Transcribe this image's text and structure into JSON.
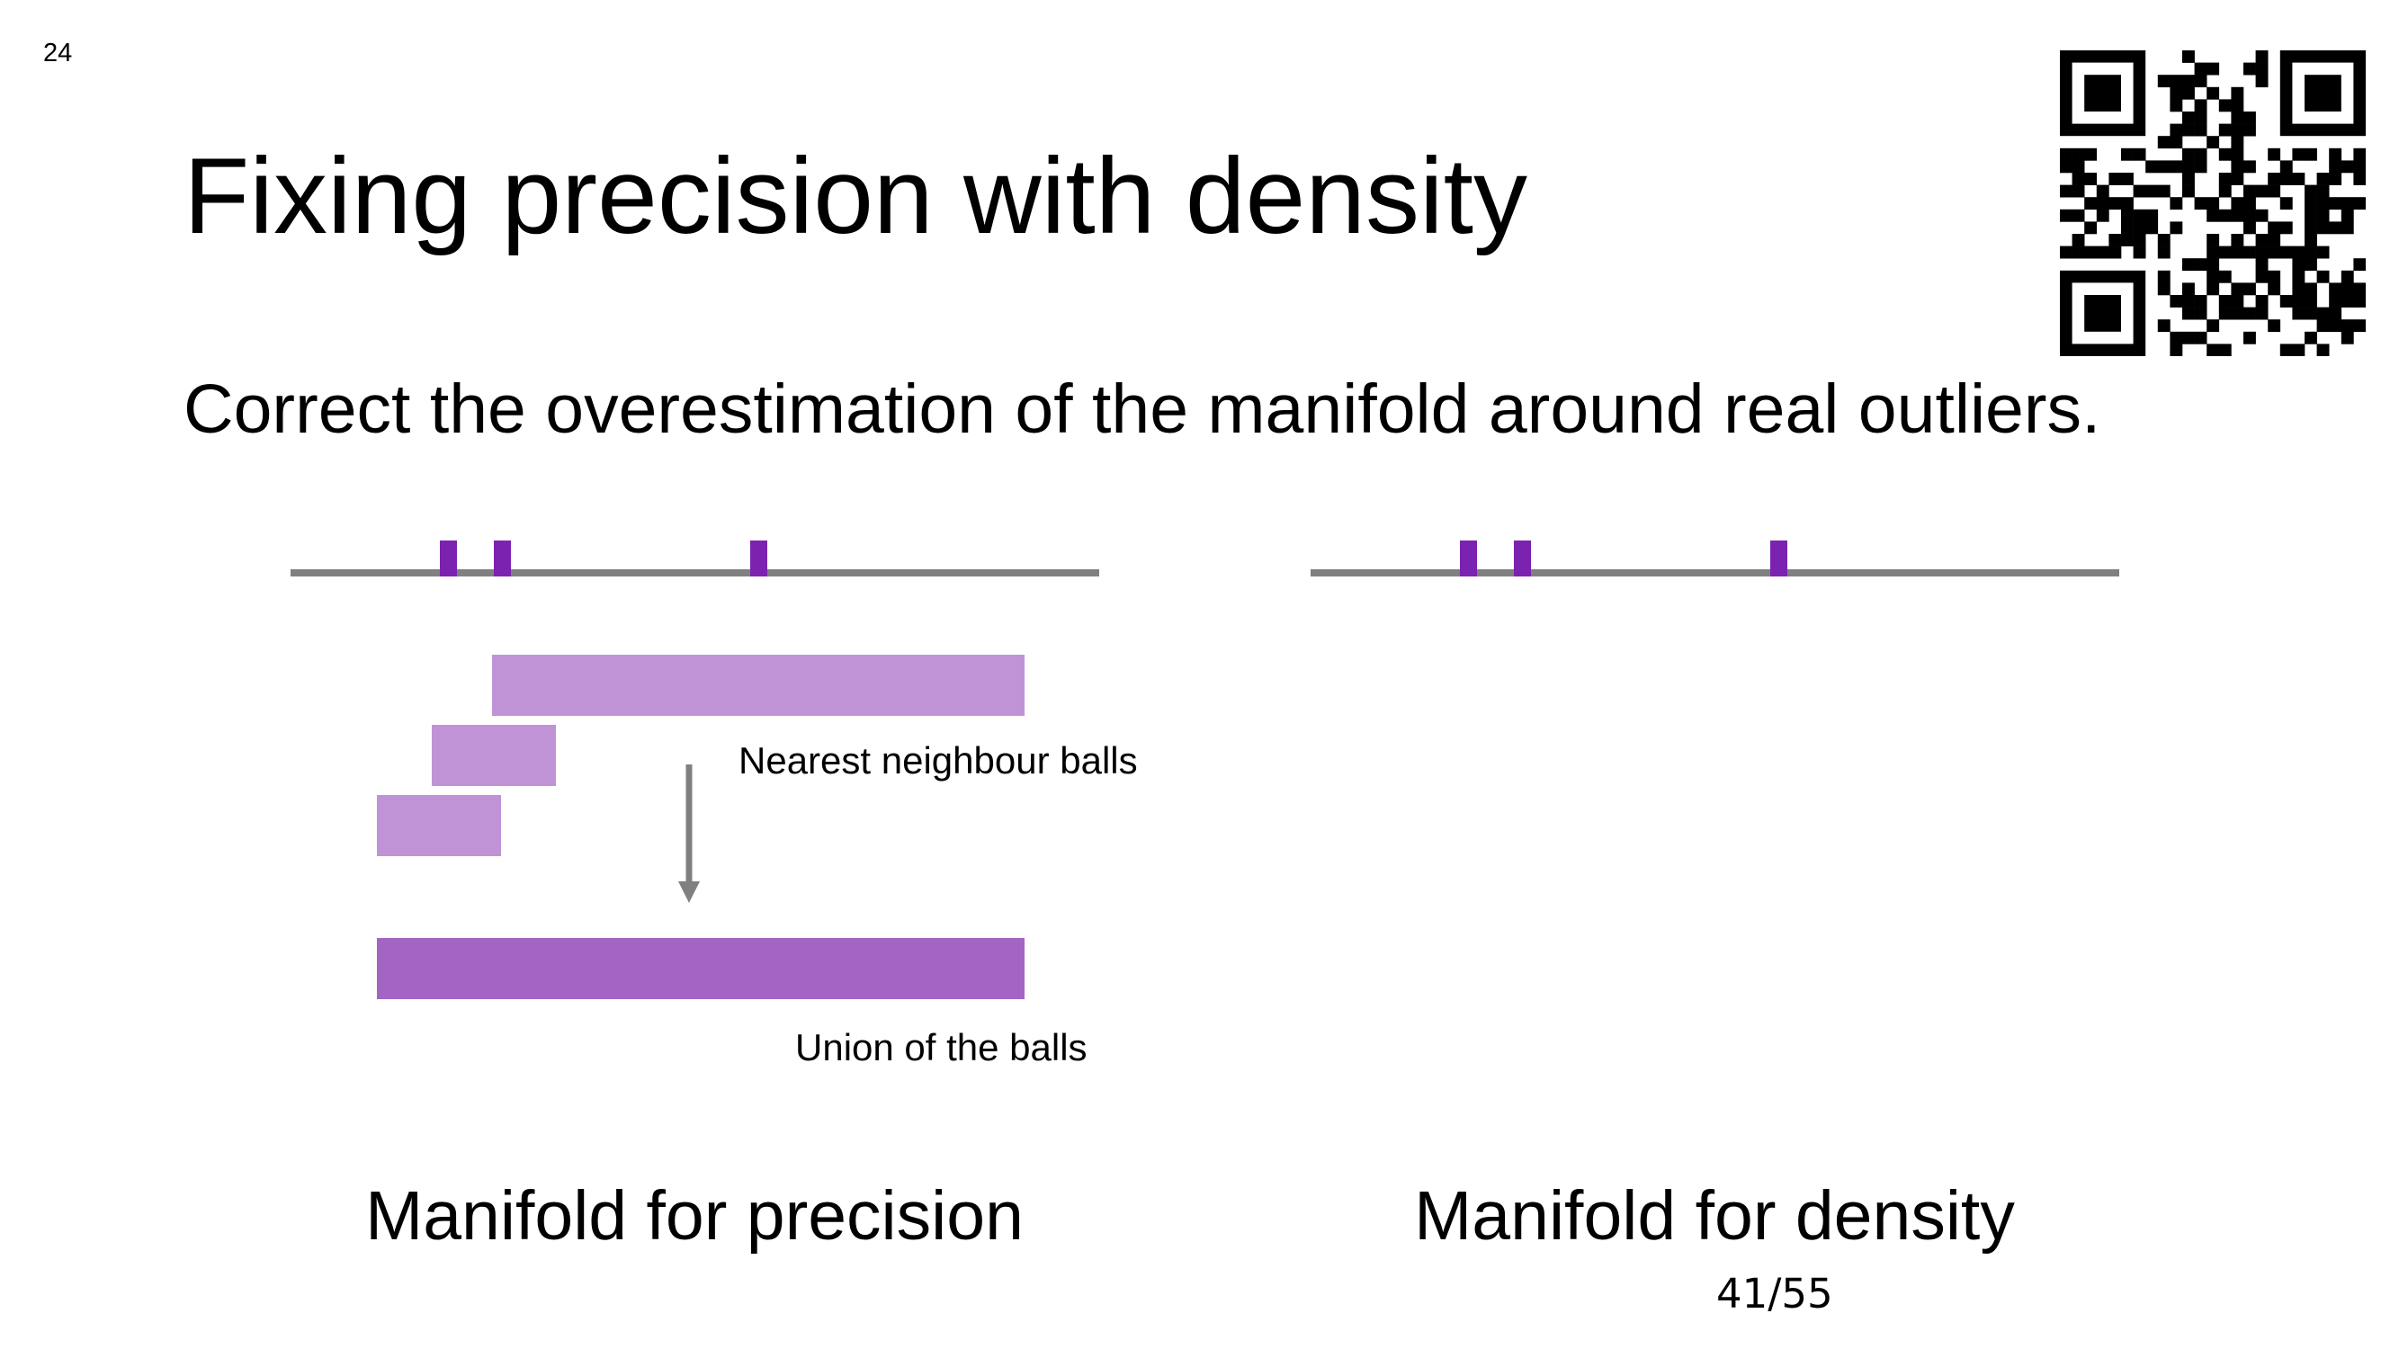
{
  "slide": {
    "number": "24",
    "title": "Fixing precision with density",
    "subtitle": "Correct the overestimation of the manifold around real outliers.",
    "page_counter": "41/55"
  },
  "qr_code": {
    "icon": "qr-code-icon",
    "color": "#000000"
  },
  "left_panel": {
    "caption": "Manifold for precision",
    "label_balls": "Nearest neighbour balls",
    "label_union": "Union of the balls"
  },
  "right_panel": {
    "caption": "Manifold for density"
  },
  "colors": {
    "axis": "#808080",
    "point": "#7b22b0",
    "ball": "#c093d6",
    "union": "#a464c4",
    "arrow": "#808080"
  }
}
